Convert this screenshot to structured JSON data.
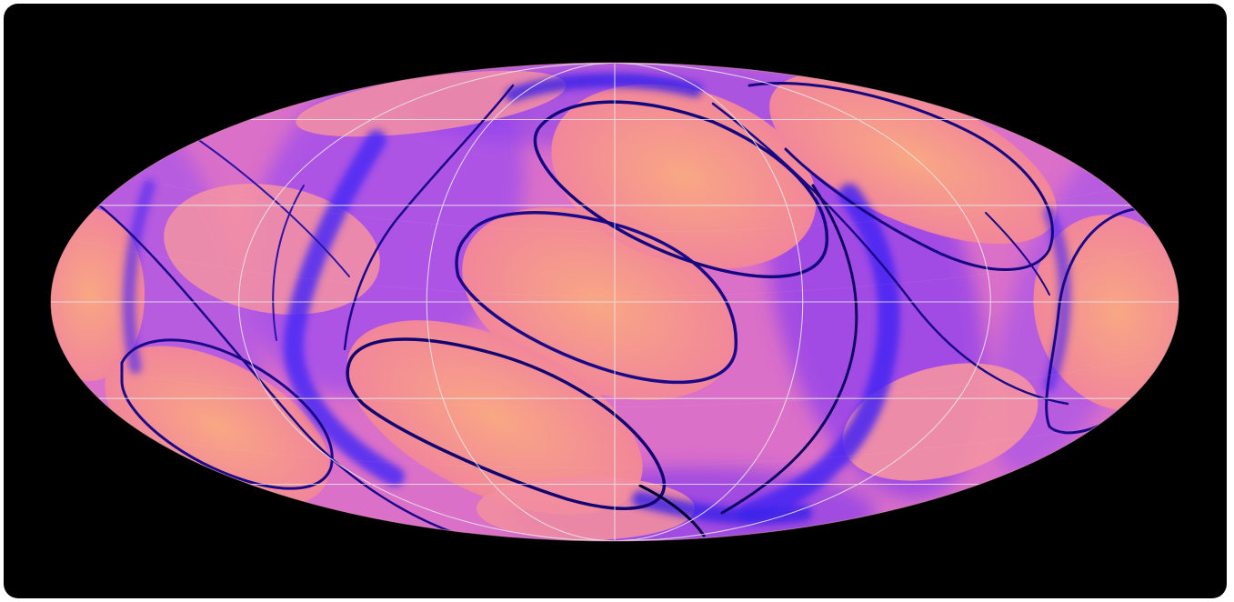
{
  "image": {
    "subject": "all-sky-map",
    "projection": "mollweide",
    "background_color": "#000000",
    "fill_color": "#f49a88",
    "caustic_colors": [
      "#ee6fa8",
      "#c04ee8",
      "#5a2cf5",
      "#1a0a8a",
      "#000033"
    ],
    "graticule_color": "#e6e6e6",
    "parallels_deg": [
      -60,
      -30,
      0,
      30,
      60
    ],
    "meridians_deg": [
      -120,
      -60,
      0,
      60,
      120
    ],
    "graticule_visible": true
  }
}
